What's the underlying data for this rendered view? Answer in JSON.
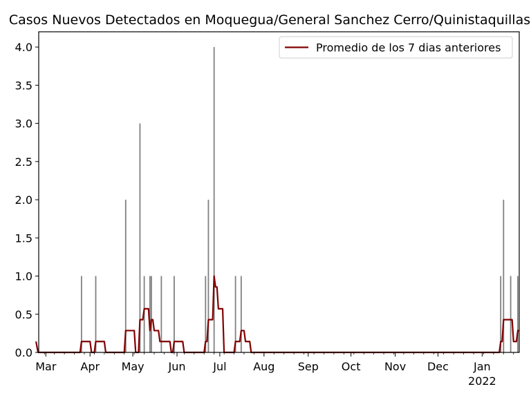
{
  "chart_data": {
    "type": "bar",
    "title": "Casos Nuevos Detectados en Moquegua/General Sanchez Cerro/Quinistaquillas",
    "xlabel": "",
    "ylabel": "",
    "x_range": [
      "2021-02-24",
      "2022-01-27"
    ],
    "ylim": [
      0,
      4.2
    ],
    "y_ticks": [
      "0.0",
      "0.5",
      "1.0",
      "1.5",
      "2.0",
      "2.5",
      "3.0",
      "3.5",
      "4.0"
    ],
    "x_ticks": [
      {
        "date": "2021-03-01",
        "label": "Mar"
      },
      {
        "date": "2021-04-01",
        "label": "Apr"
      },
      {
        "date": "2021-05-01",
        "label": "May"
      },
      {
        "date": "2021-06-01",
        "label": "Jun"
      },
      {
        "date": "2021-07-01",
        "label": "Jul"
      },
      {
        "date": "2021-08-01",
        "label": "Aug"
      },
      {
        "date": "2021-09-01",
        "label": "Sep"
      },
      {
        "date": "2021-10-01",
        "label": "Oct"
      },
      {
        "date": "2021-11-01",
        "label": "Nov"
      },
      {
        "date": "2021-12-01",
        "label": "Dec"
      },
      {
        "date": "2022-01-01",
        "label": "Jan",
        "sublabel": "2022"
      }
    ],
    "grid": false,
    "legend_position": "top-right",
    "daily_cases": {
      "color": "#808080",
      "points": [
        {
          "date": "2021-03-26",
          "value": 1
        },
        {
          "date": "2021-04-05",
          "value": 1
        },
        {
          "date": "2021-04-26",
          "value": 2
        },
        {
          "date": "2021-05-06",
          "value": 3
        },
        {
          "date": "2021-05-09",
          "value": 1
        },
        {
          "date": "2021-05-13",
          "value": 1
        },
        {
          "date": "2021-05-14",
          "value": 1
        },
        {
          "date": "2021-05-21",
          "value": 1
        },
        {
          "date": "2021-05-30",
          "value": 1
        },
        {
          "date": "2021-06-21",
          "value": 1
        },
        {
          "date": "2021-06-23",
          "value": 2
        },
        {
          "date": "2021-06-27",
          "value": 4
        },
        {
          "date": "2021-07-12",
          "value": 1
        },
        {
          "date": "2021-07-16",
          "value": 1
        },
        {
          "date": "2022-01-14",
          "value": 1
        },
        {
          "date": "2022-01-16",
          "value": 2
        },
        {
          "date": "2022-01-21",
          "value": 1
        },
        {
          "date": "2022-01-26",
          "value": 1
        }
      ]
    },
    "series": [
      {
        "name": "Promedio de los 7 dias anteriores",
        "color": "#800000",
        "x_start": "2021-02-25",
        "x_end": "2022-01-27"
      }
    ]
  }
}
